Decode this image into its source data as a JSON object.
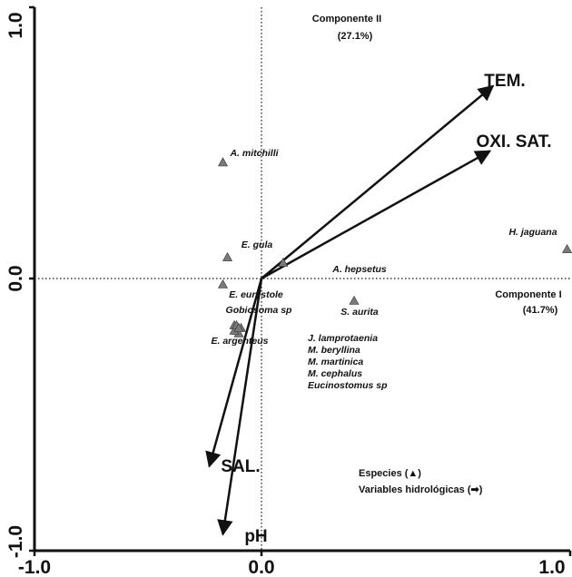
{
  "chart_data": {
    "type": "scatter",
    "xlim": [
      -1.0,
      1.0
    ],
    "ylim": [
      -1.0,
      1.0
    ],
    "x_ticks": [
      "-1.0",
      "0.0",
      "1.0"
    ],
    "y_ticks": [
      "1.0",
      "0.0",
      "-1.0"
    ],
    "component_axes": {
      "axis2": {
        "name": "Componente II",
        "variance": "(27.1%)"
      },
      "axis1": {
        "name": "Componente I",
        "variance": "(41.7%)"
      }
    },
    "species": [
      {
        "label": "A. mitchilli",
        "x": -0.17,
        "y": 0.43
      },
      {
        "label": "E. gula",
        "x": -0.15,
        "y": 0.08
      },
      {
        "label": "E. eurystole",
        "x": -0.17,
        "y": -0.02
      },
      {
        "label": "Gobiosoma sp",
        "x": -0.12,
        "y": -0.17
      },
      {
        "label": "E. argenteus",
        "x": -0.11,
        "y": -0.19
      },
      {
        "label": "H. jaguana",
        "x": 0.99,
        "y": 0.11
      },
      {
        "label": "A. hepsetus",
        "x": 0.07,
        "y": 0.06
      },
      {
        "label": "S. aurita",
        "x": 0.3,
        "y": -0.08
      },
      {
        "label": "J. lamprotaenia",
        "x": -0.09,
        "y": -0.18
      },
      {
        "label": "M. beryllina",
        "x": -0.1,
        "y": -0.2
      },
      {
        "label": "M. martinica",
        "x": -0.12,
        "y": -0.19
      },
      {
        "label": "M. cephalus",
        "x": -0.11,
        "y": -0.17
      },
      {
        "label": "Eucinostomus sp",
        "x": -0.1,
        "y": -0.18
      }
    ],
    "species_label_block": [
      "J. lamprotaenia",
      "M. beryllina",
      "M. martinica",
      "M. cephalus",
      "Eucinostomus sp"
    ],
    "vectors": [
      {
        "label": "TEM.",
        "x": 0.75,
        "y": 0.71
      },
      {
        "label": "OXI. SAT.",
        "x": 0.74,
        "y": 0.47
      },
      {
        "label": "SAL.",
        "x": -0.23,
        "y": -0.69
      },
      {
        "label": "pH",
        "x": -0.17,
        "y": -0.94
      }
    ],
    "legend": {
      "species": "Especies (▲)",
      "variables": "Variables hidrológicas (➡)",
      "placement": "bottom-right"
    },
    "grid": false,
    "colors": {
      "markers": "#7a7a7a",
      "vectors": "#111111",
      "reference_lines": "#111111"
    }
  }
}
